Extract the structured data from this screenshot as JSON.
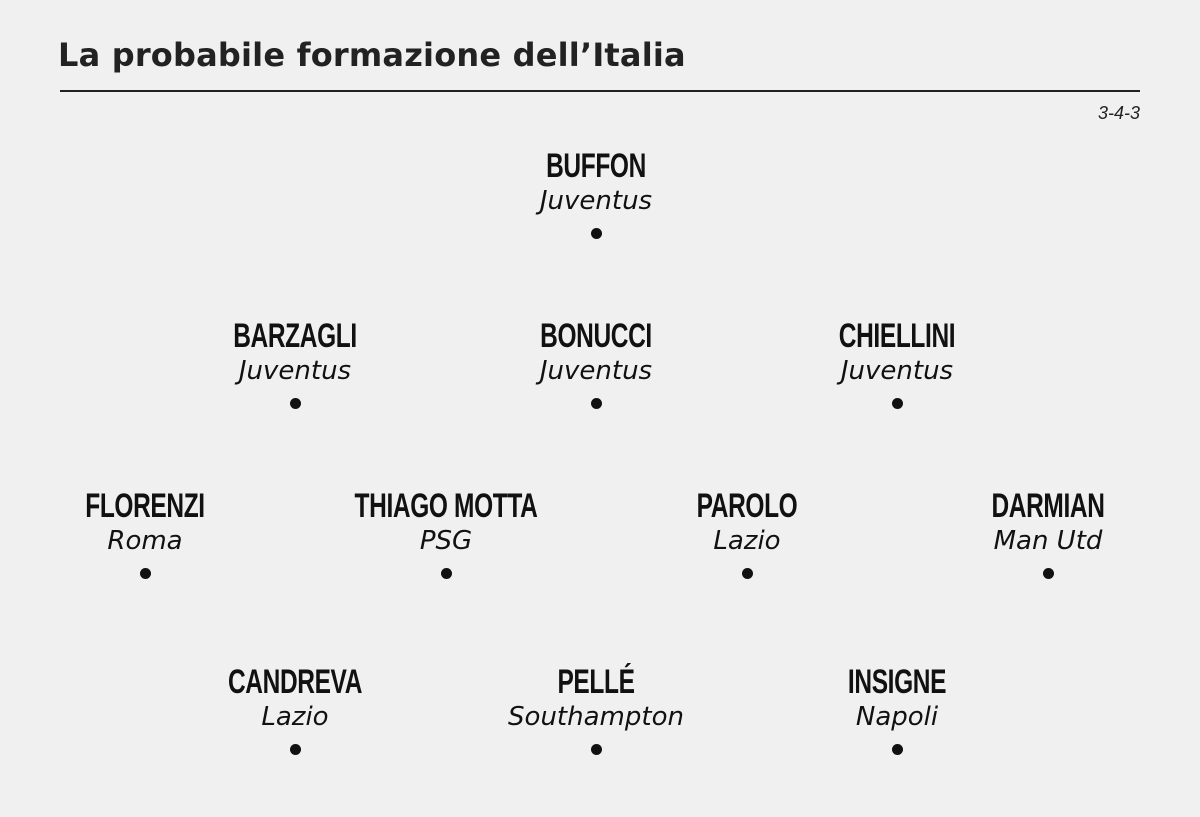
{
  "title": "La probabile formazione dell’Italia",
  "formation": "3-4-3",
  "colors": {
    "background": "#eff0ef",
    "text": "#111111",
    "rule": "#222222"
  },
  "lines": {
    "goalkeeper": [
      {
        "name": "BUFFON",
        "club": "Juventus"
      }
    ],
    "defenders": [
      {
        "name": "BARZAGLI",
        "club": "Juventus"
      },
      {
        "name": "BONUCCI",
        "club": "Juventus"
      },
      {
        "name": "CHIELLINI",
        "club": "Juventus"
      }
    ],
    "midfielders": [
      {
        "name": "FLORENZI",
        "club": "Roma"
      },
      {
        "name": "THIAGO MOTTA",
        "club": "PSG"
      },
      {
        "name": "PAROLO",
        "club": "Lazio"
      },
      {
        "name": "DARMIAN",
        "club": "Man Utd"
      }
    ],
    "forwards": [
      {
        "name": "CANDREVA",
        "club": "Lazio"
      },
      {
        "name": "PELLÉ",
        "club": "Southampton"
      },
      {
        "name": "INSIGNE",
        "club": "Napoli"
      }
    ]
  }
}
